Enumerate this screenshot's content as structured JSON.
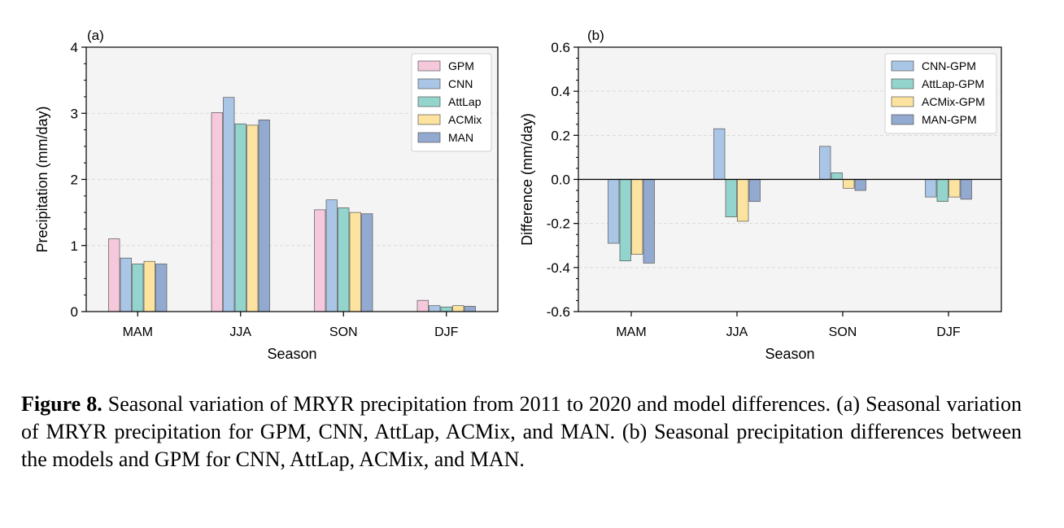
{
  "chart_data": [
    {
      "type": "bar",
      "panel_label": "(a)",
      "categories": [
        "MAM",
        "JJA",
        "SON",
        "DJF"
      ],
      "series": [
        {
          "name": "GPM",
          "color": "#f6c8dc",
          "values": [
            1.1,
            3.01,
            1.54,
            0.17
          ]
        },
        {
          "name": "CNN",
          "color": "#a9c6e6",
          "values": [
            0.81,
            3.24,
            1.69,
            0.09
          ]
        },
        {
          "name": "AttLap",
          "color": "#93d4cc",
          "values": [
            0.72,
            2.84,
            1.57,
            0.07
          ]
        },
        {
          "name": "ACMix",
          "color": "#fde3a0",
          "values": [
            0.76,
            2.82,
            1.5,
            0.09
          ]
        },
        {
          "name": "MAN",
          "color": "#93aad0",
          "values": [
            0.72,
            2.9,
            1.48,
            0.08
          ]
        }
      ],
      "xlabel": "Season",
      "ylabel": "Precipitation (mm/day)",
      "ylim": [
        0,
        4
      ],
      "yticks": [
        "0",
        "1",
        "2",
        "3",
        "4"
      ],
      "grid": true,
      "legend_position": "top-right"
    },
    {
      "type": "bar",
      "panel_label": "(b)",
      "categories": [
        "MAM",
        "JJA",
        "SON",
        "DJF"
      ],
      "series": [
        {
          "name": "CNN-GPM",
          "color": "#a9c6e6",
          "values": [
            -0.29,
            0.23,
            0.15,
            -0.08
          ]
        },
        {
          "name": "AttLap-GPM",
          "color": "#93d4cc",
          "values": [
            -0.37,
            -0.17,
            0.03,
            -0.1
          ]
        },
        {
          "name": "ACMix-GPM",
          "color": "#fde3a0",
          "values": [
            -0.34,
            -0.19,
            -0.04,
            -0.08
          ]
        },
        {
          "name": "MAN-GPM",
          "color": "#93aad0",
          "values": [
            -0.38,
            -0.1,
            -0.05,
            -0.09
          ]
        }
      ],
      "xlabel": "Season",
      "ylabel": "Difference (mm/day)",
      "ylim": [
        -0.6,
        0.6
      ],
      "yticks": [
        "-0.6",
        "-0.4",
        "-0.2",
        "0.0",
        "0.2",
        "0.4",
        "0.6"
      ],
      "grid": true,
      "zero_line": true,
      "legend_position": "top-right"
    }
  ],
  "caption": {
    "label": "Figure 8.",
    "text": " Seasonal variation of MRYR precipitation from 2011 to 2020 and model differences. (a) Seasonal variation of MRYR precipitation for GPM, CNN, AttLap, ACMix, and MAN. (b) Seasonal precipitation differences between the models and GPM for CNN, AttLap, ACMix, and MAN."
  }
}
